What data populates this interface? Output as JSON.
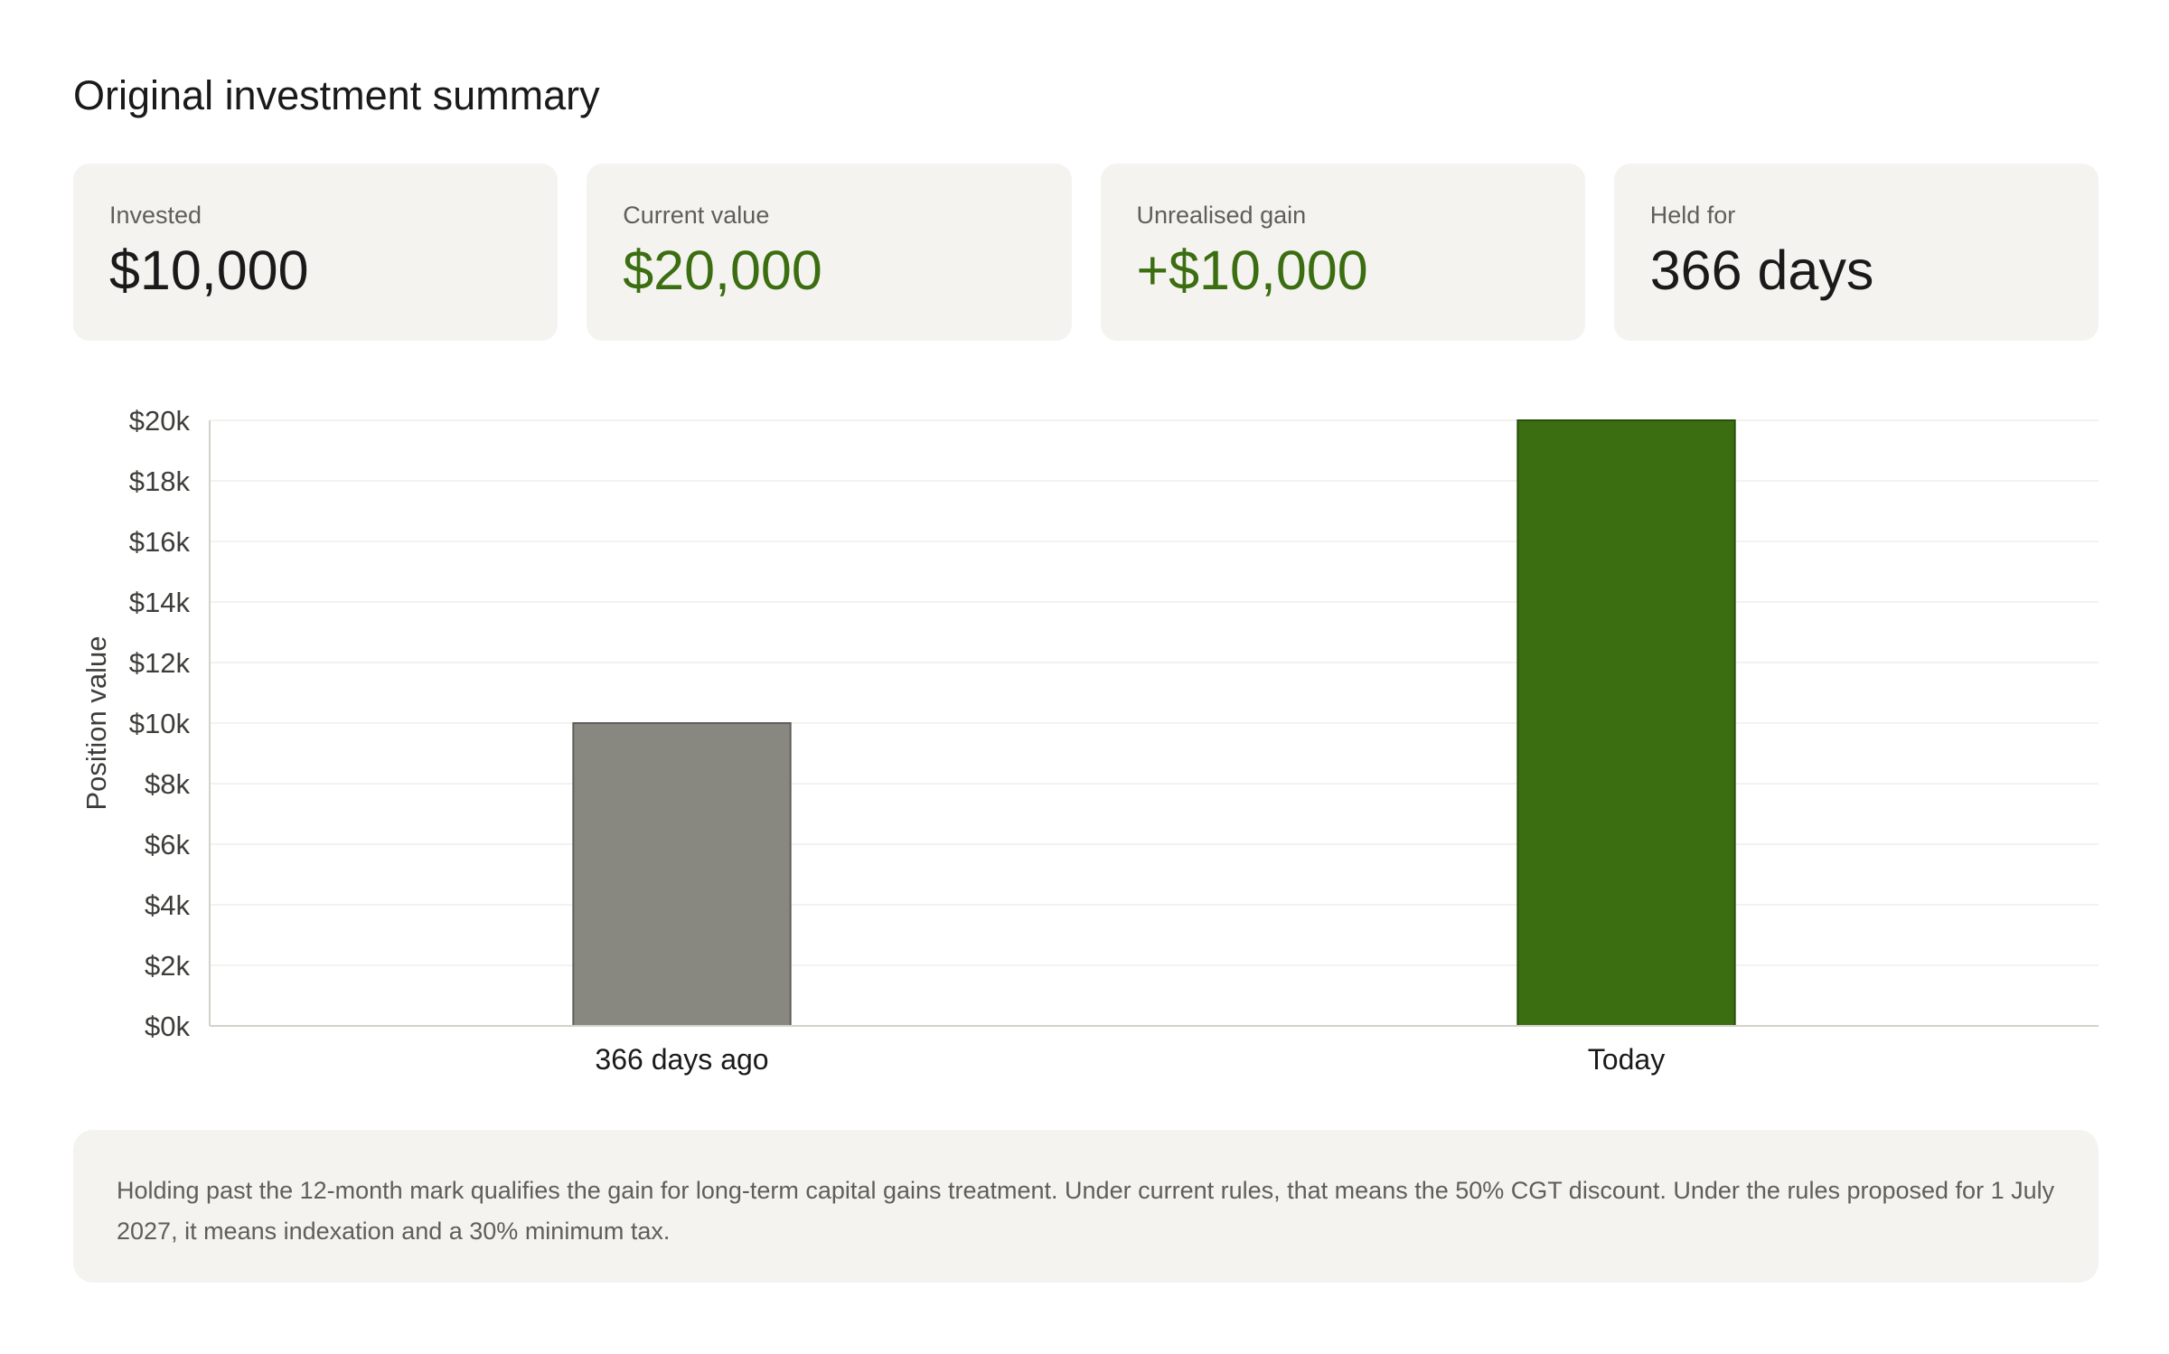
{
  "title": "Original investment summary",
  "cards": [
    {
      "label": "Invested",
      "value": "$10,000",
      "tone": "neutral"
    },
    {
      "label": "Current value",
      "value": "$20,000",
      "tone": "positive"
    },
    {
      "label": "Unrealised gain",
      "value": "+$10,000",
      "tone": "positive"
    },
    {
      "label": "Held for",
      "value": "366 days",
      "tone": "neutral"
    }
  ],
  "colors": {
    "positive": "#3b6d11",
    "bar_past": "#898880",
    "bar_past_border": "#5f5e5a",
    "bar_today": "#3b6d11",
    "bar_today_border": "#27500a",
    "card_bg": "#f4f3ef"
  },
  "chart_data": {
    "type": "bar",
    "categories": [
      "366 days ago",
      "Today"
    ],
    "values": [
      10000,
      20000
    ],
    "ylabel": "Position value",
    "ylim": [
      0,
      20000
    ],
    "yticks": [
      {
        "value": 0,
        "label": "$0k"
      },
      {
        "value": 2000,
        "label": "$2k"
      },
      {
        "value": 4000,
        "label": "$4k"
      },
      {
        "value": 6000,
        "label": "$6k"
      },
      {
        "value": 8000,
        "label": "$8k"
      },
      {
        "value": 10000,
        "label": "$10k"
      },
      {
        "value": 12000,
        "label": "$12k"
      },
      {
        "value": 14000,
        "label": "$14k"
      },
      {
        "value": 16000,
        "label": "$16k"
      },
      {
        "value": 18000,
        "label": "$18k"
      },
      {
        "value": 20000,
        "label": "$20k"
      }
    ],
    "grid": true,
    "legend": "none"
  },
  "note": "Holding past the 12-month mark qualifies the gain for long-term capital gains treatment. Under current rules, that means the 50% CGT discount. Under the rules proposed for 1 July 2027, it means indexation and a 30% minimum tax."
}
